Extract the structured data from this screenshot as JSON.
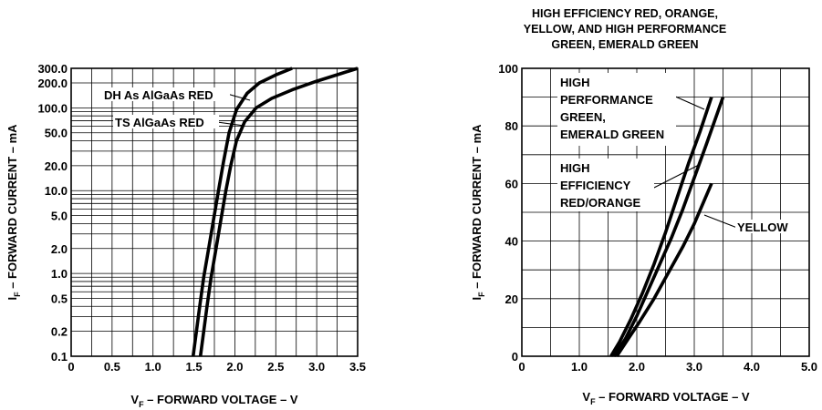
{
  "chart_data": [
    {
      "type": "line",
      "title": "",
      "xlabel": "V_F – FORWARD VOLTAGE – V",
      "xlabel_main": "V",
      "xlabel_sub": "F",
      "xlabel_rest": " – FORWARD VOLTAGE – V",
      "ylabel_main": "I",
      "ylabel_sub": "F",
      "ylabel_rest": " – FORWARD CURRENT – mA",
      "xlim": [
        0,
        3.5
      ],
      "ylim": [
        0.1,
        300
      ],
      "yscale": "log",
      "grid": true,
      "x_ticks": [
        0,
        0.5,
        1.0,
        1.5,
        2.0,
        2.5,
        3.0,
        3.5
      ],
      "x_tick_labels": [
        "0",
        "0.5",
        "1.0",
        "1.5",
        "2.0",
        "2.5",
        "3.0",
        "3.5"
      ],
      "y_ticks": [
        0.1,
        0.2,
        0.5,
        1.0,
        2.0,
        5.0,
        10.0,
        20.0,
        50.0,
        100.0,
        200.0,
        300.0
      ],
      "y_tick_labels": [
        "0.1",
        "0.2",
        "0.5",
        "1.0",
        "2.0",
        "5.0",
        "10.0",
        "20.0",
        "50.0",
        "100.0",
        "200.0",
        "300.0"
      ],
      "series": [
        {
          "name": "DH As AlGaAs RED",
          "x": [
            1.49,
            1.53,
            1.57,
            1.62,
            1.68,
            1.74,
            1.8,
            1.86,
            1.93,
            2.02,
            2.15,
            2.3,
            2.5,
            2.7
          ],
          "y": [
            0.1,
            0.2,
            0.4,
            0.9,
            2.0,
            4.5,
            10,
            22,
            50,
            95,
            150,
            200,
            250,
            300
          ]
        },
        {
          "name": "TS AlGaAs RED",
          "x": [
            1.58,
            1.62,
            1.66,
            1.71,
            1.77,
            1.83,
            1.89,
            1.95,
            2.02,
            2.12,
            2.26,
            2.45,
            2.7,
            3.0,
            3.3,
            3.5
          ],
          "y": [
            0.1,
            0.2,
            0.4,
            0.9,
            2.0,
            4.5,
            10,
            20,
            40,
            68,
            100,
            130,
            165,
            210,
            260,
            300
          ]
        }
      ]
    },
    {
      "type": "line",
      "title_lines": [
        "HIGH EFFICIENCY RED, ORANGE,",
        "YELLOW, AND HIGH PERFORMANCE",
        "GREEN, EMERALD GREEN"
      ],
      "xlabel": "V_F – FORWARD VOLTAGE – V",
      "xlabel_main": "V",
      "xlabel_sub": "F",
      "xlabel_rest": " – FORWARD VOLTAGE – V",
      "ylabel_main": "I",
      "ylabel_sub": "F",
      "ylabel_rest": " – FORWARD CURRENT – mA",
      "xlim": [
        0,
        5.0
      ],
      "ylim": [
        0,
        100
      ],
      "yscale": "linear",
      "grid": true,
      "x_ticks": [
        0,
        1.0,
        2.0,
        3.0,
        4.0,
        5.0
      ],
      "x_tick_labels": [
        "0",
        "1.0",
        "2.0",
        "3.0",
        "4.0",
        "5.0"
      ],
      "y_ticks": [
        0,
        20,
        40,
        60,
        80,
        100
      ],
      "y_tick_labels": [
        "0",
        "20",
        "40",
        "60",
        "80",
        "100"
      ],
      "series": [
        {
          "name": "HIGH PERFORMANCE GREEN, EMERALD GREEN",
          "label_lines": [
            "HIGH",
            "PERFORMANCE",
            "GREEN,",
            "EMERALD GREEN"
          ],
          "x": [
            1.55,
            1.7,
            1.9,
            2.1,
            2.3,
            2.5,
            2.7,
            2.9,
            3.1,
            3.3
          ],
          "y": [
            0,
            5,
            13,
            22,
            32,
            43,
            55,
            67,
            78,
            90
          ]
        },
        {
          "name": "HIGH EFFICIENCY RED/ORANGE",
          "label_lines": [
            "HIGH",
            "EFFICIENCY",
            "RED/ORANGE"
          ],
          "x": [
            1.6,
            1.8,
            2.0,
            2.2,
            2.4,
            2.6,
            2.8,
            3.0,
            3.2,
            3.5
          ],
          "y": [
            0,
            6,
            14,
            23,
            32,
            41,
            51,
            62,
            73,
            90
          ]
        },
        {
          "name": "YELLOW",
          "label_lines": [
            "YELLOW"
          ],
          "x": [
            1.65,
            1.85,
            2.05,
            2.3,
            2.55,
            2.8,
            3.0,
            3.3
          ],
          "y": [
            0,
            6,
            12,
            20,
            29,
            38,
            46,
            60
          ]
        }
      ]
    }
  ]
}
